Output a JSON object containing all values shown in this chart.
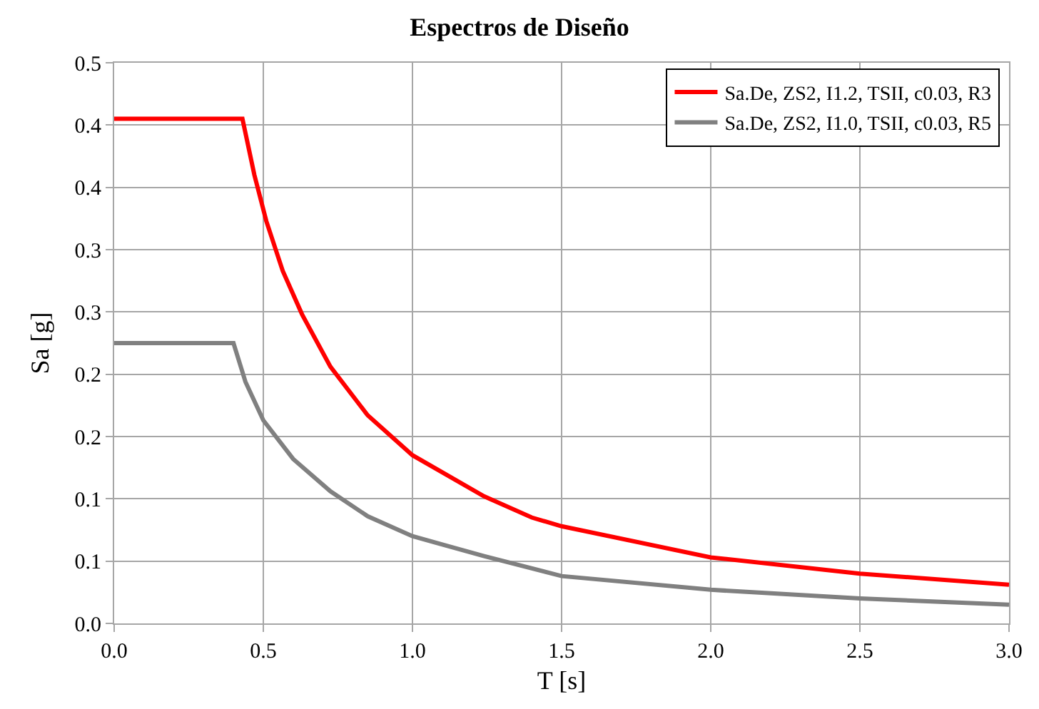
{
  "chart_data": {
    "type": "line",
    "title": "Espectros de Diseño",
    "xlabel": "T [s]",
    "ylabel": "Sa [g]",
    "xlim": [
      0,
      3
    ],
    "xticks": [
      {
        "value": 0,
        "label": "0.0"
      },
      0.5,
      {
        "value": 1,
        "label": "1.0"
      },
      1.5,
      {
        "value": 2,
        "label": "2.0"
      },
      2.5,
      {
        "value": 3,
        "label": "3.0"
      }
    ],
    "ylim": [
      0,
      0.45
    ],
    "yticks": [
      {
        "value": 0,
        "label": "0.0"
      },
      {
        "value": 0.05,
        "label": "0.1"
      },
      0.1,
      {
        "value": 0.15,
        "label": "0.2"
      },
      0.2,
      {
        "value": 0.25,
        "label": "0.3"
      },
      0.3,
      {
        "value": 0.35,
        "label": "0.4"
      },
      0.4,
      {
        "value": 0.45,
        "label": "0.5"
      }
    ],
    "grid": true,
    "legend": "top right",
    "line_style": "solid",
    "marker": "none",
    "series": [
      {
        "name": "Sa.De, ZS2, I1.2, TSII, c0.03, R3",
        "color": "#ff0000",
        "x": [
          0,
          0.43,
          0.47,
          0.51,
          0.565,
          0.63,
          0.725,
          0.85,
          1.0,
          1.24,
          1.4,
          1.5,
          2.0,
          2.5,
          3.0
        ],
        "values": [
          0.405,
          0.405,
          0.36,
          0.323,
          0.283,
          0.248,
          0.206,
          0.167,
          0.135,
          0.102,
          0.085,
          0.078,
          0.053,
          0.04,
          0.031
        ]
      },
      {
        "name": "Sa.De, ZS2, I1.0, TSII, c0.03, R5",
        "color": "#808080",
        "x": [
          0,
          0.4,
          0.44,
          0.5,
          0.6,
          0.725,
          0.85,
          1.0,
          1.24,
          1.5,
          2.0,
          2.5,
          3.0
        ],
        "values": [
          0.225,
          0.225,
          0.194,
          0.163,
          0.132,
          0.106,
          0.086,
          0.07,
          0.054,
          0.038,
          0.027,
          0.02,
          0.015
        ]
      }
    ]
  }
}
